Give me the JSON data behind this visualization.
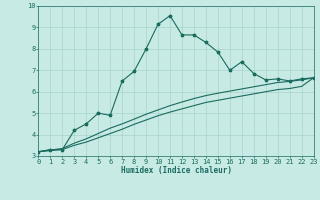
{
  "xlabel": "Humidex (Indice chaleur)",
  "xlim": [
    0,
    23
  ],
  "ylim": [
    3,
    10
  ],
  "yticks": [
    3,
    4,
    5,
    6,
    7,
    8,
    9,
    10
  ],
  "xticks": [
    0,
    1,
    2,
    3,
    4,
    5,
    6,
    7,
    8,
    9,
    10,
    11,
    12,
    13,
    14,
    15,
    16,
    17,
    18,
    19,
    20,
    21,
    22,
    23
  ],
  "bg_color": "#c8eae4",
  "line_color": "#1a6b60",
  "grid_color": "#a0cfc8",
  "line1_x": [
    0,
    1,
    2,
    3,
    4,
    5,
    6,
    7,
    8,
    9,
    10,
    11,
    12,
    13,
    14,
    15,
    16,
    17,
    18,
    19,
    20,
    21,
    22,
    23
  ],
  "line1_y": [
    3.2,
    3.3,
    3.3,
    4.2,
    4.5,
    5.0,
    4.9,
    6.5,
    6.95,
    8.0,
    9.15,
    9.55,
    8.65,
    8.65,
    8.3,
    7.85,
    7.0,
    7.4,
    6.85,
    6.55,
    6.6,
    6.5,
    6.6,
    6.65
  ],
  "line2_x": [
    0,
    1,
    2,
    3,
    4,
    5,
    6,
    7,
    8,
    9,
    10,
    11,
    12,
    13,
    14,
    15,
    16,
    17,
    18,
    19,
    20,
    21,
    22,
    23
  ],
  "line2_y": [
    3.2,
    3.28,
    3.35,
    3.6,
    3.8,
    4.05,
    4.3,
    4.5,
    4.72,
    4.95,
    5.15,
    5.35,
    5.52,
    5.68,
    5.82,
    5.93,
    6.03,
    6.13,
    6.23,
    6.33,
    6.43,
    6.48,
    6.55,
    6.65
  ],
  "line3_x": [
    0,
    1,
    2,
    3,
    4,
    5,
    6,
    7,
    8,
    9,
    10,
    11,
    12,
    13,
    14,
    15,
    16,
    17,
    18,
    19,
    20,
    21,
    22,
    23
  ],
  "line3_y": [
    3.2,
    3.25,
    3.3,
    3.5,
    3.65,
    3.85,
    4.05,
    4.25,
    4.48,
    4.68,
    4.88,
    5.05,
    5.2,
    5.35,
    5.5,
    5.6,
    5.7,
    5.8,
    5.9,
    6.0,
    6.1,
    6.15,
    6.25,
    6.65
  ],
  "xlabel_fontsize": 5.5,
  "tick_fontsize": 5,
  "linewidth": 0.8,
  "marker_size": 2.5
}
